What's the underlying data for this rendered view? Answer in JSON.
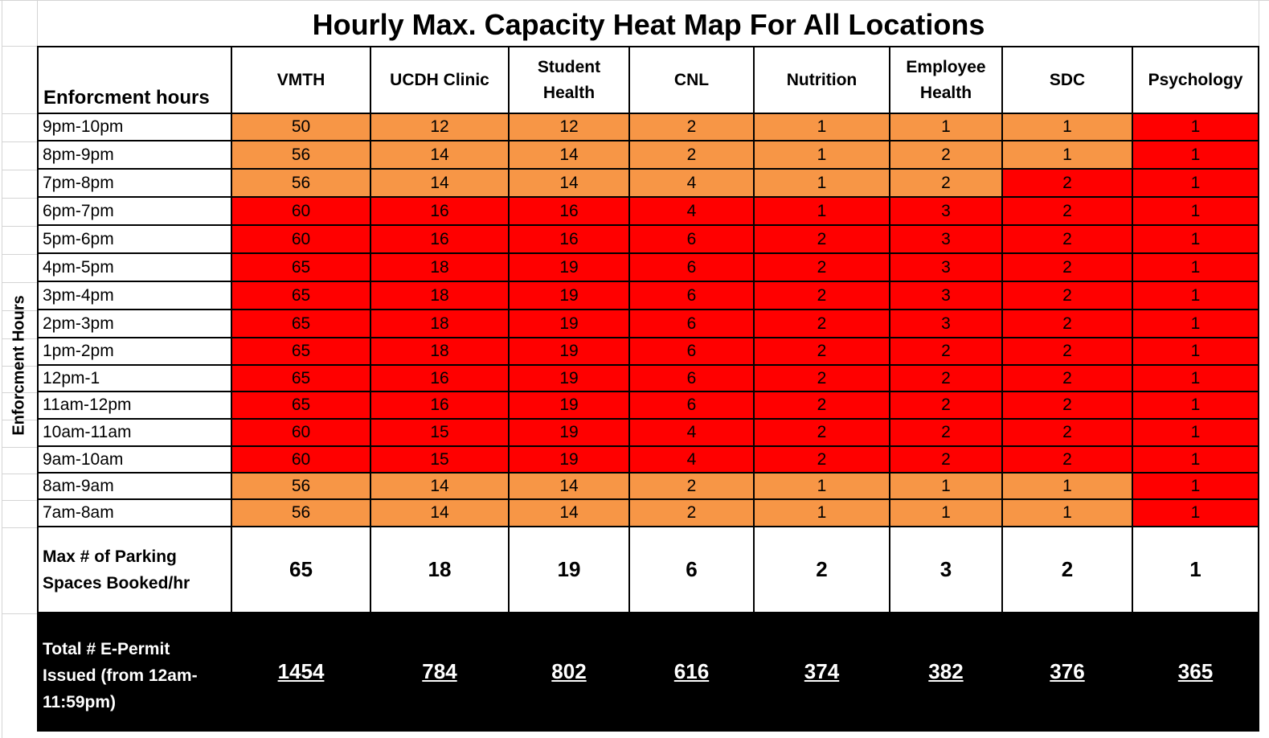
{
  "title": "Hourly Max. Capacity Heat Map For All Locations",
  "side_label": "Enforcment Hours",
  "chart_data": {
    "type": "heatmap",
    "title": "Hourly Max. Capacity Heat Map For All Locations",
    "corner_header": "Enforcment hours",
    "columns": [
      {
        "lines": [
          "VMTH"
        ]
      },
      {
        "lines": [
          "UCDH Clinic"
        ]
      },
      {
        "lines": [
          "Student",
          "Health"
        ]
      },
      {
        "lines": [
          "CNL"
        ]
      },
      {
        "lines": [
          "Nutrition"
        ]
      },
      {
        "lines": [
          "Employee",
          "Health"
        ]
      },
      {
        "lines": [
          "SDC"
        ]
      },
      {
        "lines": [
          "Psychology"
        ]
      }
    ],
    "rows": [
      {
        "hour": "9pm-10pm",
        "values": [
          50,
          12,
          12,
          2,
          1,
          1,
          1,
          1
        ],
        "levels": [
          "o",
          "o",
          "o",
          "o",
          "o",
          "o",
          "o",
          "r"
        ]
      },
      {
        "hour": "8pm-9pm",
        "values": [
          56,
          14,
          14,
          2,
          1,
          2,
          1,
          1
        ],
        "levels": [
          "o",
          "o",
          "o",
          "o",
          "o",
          "o",
          "o",
          "r"
        ]
      },
      {
        "hour": "7pm-8pm",
        "values": [
          56,
          14,
          14,
          4,
          1,
          2,
          2,
          1
        ],
        "levels": [
          "o",
          "o",
          "o",
          "o",
          "o",
          "o",
          "r",
          "r"
        ]
      },
      {
        "hour": "6pm-7pm",
        "values": [
          60,
          16,
          16,
          4,
          1,
          3,
          2,
          1
        ],
        "levels": [
          "r",
          "r",
          "r",
          "r",
          "r",
          "r",
          "r",
          "r"
        ]
      },
      {
        "hour": "5pm-6pm",
        "values": [
          60,
          16,
          16,
          6,
          2,
          3,
          2,
          1
        ],
        "levels": [
          "r",
          "r",
          "r",
          "r",
          "r",
          "r",
          "r",
          "r"
        ]
      },
      {
        "hour": "4pm-5pm",
        "values": [
          65,
          18,
          19,
          6,
          2,
          3,
          2,
          1
        ],
        "levels": [
          "r",
          "r",
          "r",
          "r",
          "r",
          "r",
          "r",
          "r"
        ]
      },
      {
        "hour": "3pm-4pm",
        "values": [
          65,
          18,
          19,
          6,
          2,
          3,
          2,
          1
        ],
        "levels": [
          "r",
          "r",
          "r",
          "r",
          "r",
          "r",
          "r",
          "r"
        ]
      },
      {
        "hour": "2pm-3pm",
        "values": [
          65,
          18,
          19,
          6,
          2,
          3,
          2,
          1
        ],
        "levels": [
          "r",
          "r",
          "r",
          "r",
          "r",
          "r",
          "r",
          "r"
        ]
      },
      {
        "hour": "1pm-2pm",
        "values": [
          65,
          18,
          19,
          6,
          2,
          2,
          2,
          1
        ],
        "levels": [
          "r",
          "r",
          "r",
          "r",
          "r",
          "r",
          "r",
          "r"
        ]
      },
      {
        "hour": "12pm-1",
        "values": [
          65,
          16,
          19,
          6,
          2,
          2,
          2,
          1
        ],
        "levels": [
          "r",
          "r",
          "r",
          "r",
          "r",
          "r",
          "r",
          "r"
        ]
      },
      {
        "hour": "11am-12pm",
        "values": [
          65,
          16,
          19,
          6,
          2,
          2,
          2,
          1
        ],
        "levels": [
          "r",
          "r",
          "r",
          "r",
          "r",
          "r",
          "r",
          "r"
        ]
      },
      {
        "hour": "10am-11am",
        "values": [
          60,
          15,
          19,
          4,
          2,
          2,
          2,
          1
        ],
        "levels": [
          "r",
          "r",
          "r",
          "r",
          "r",
          "r",
          "r",
          "r"
        ]
      },
      {
        "hour": "9am-10am",
        "values": [
          60,
          15,
          19,
          4,
          2,
          2,
          2,
          1
        ],
        "levels": [
          "r",
          "r",
          "r",
          "r",
          "r",
          "r",
          "r",
          "r"
        ]
      },
      {
        "hour": "8am-9am",
        "values": [
          56,
          14,
          14,
          2,
          1,
          1,
          1,
          1
        ],
        "levels": [
          "o",
          "o",
          "o",
          "o",
          "o",
          "o",
          "o",
          "r"
        ]
      },
      {
        "hour": "7am-8am",
        "values": [
          56,
          14,
          14,
          2,
          1,
          1,
          1,
          1
        ],
        "levels": [
          "o",
          "o",
          "o",
          "o",
          "o",
          "o",
          "o",
          "r"
        ]
      }
    ],
    "colors": {
      "o": "#f79646",
      "r": "#ff0000"
    },
    "max_row": {
      "label_lines": [
        "Max # of Parking",
        "Spaces Booked/hr"
      ],
      "values": [
        65,
        18,
        19,
        6,
        2,
        3,
        2,
        1
      ]
    },
    "total_row": {
      "label_lines": [
        "Total # E-Permit",
        "Issued (from 12am-",
        "11:59pm)"
      ],
      "values": [
        1454,
        784,
        802,
        616,
        374,
        382,
        376,
        365
      ]
    }
  }
}
